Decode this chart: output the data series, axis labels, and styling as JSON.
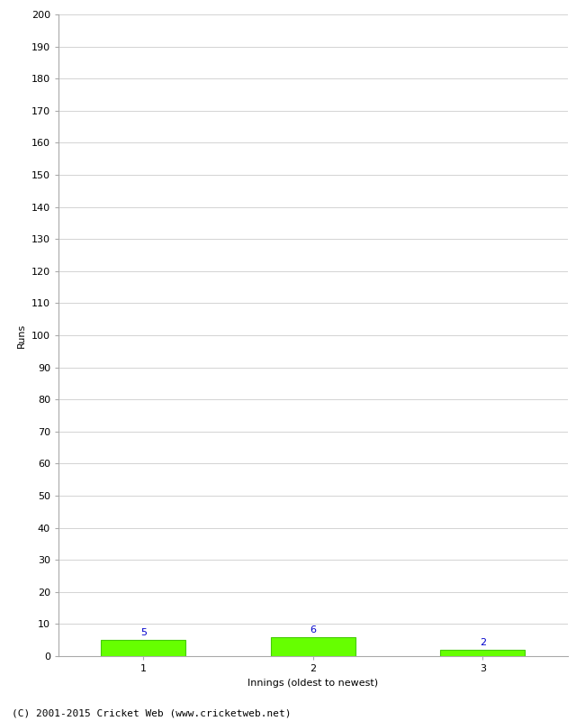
{
  "categories": [
    1,
    2,
    3
  ],
  "values": [
    5,
    6,
    2
  ],
  "bar_color": "#66ff00",
  "bar_edge_color": "#44cc00",
  "label_color": "#0000cc",
  "xlabel": "Innings (oldest to newest)",
  "ylabel": "Runs",
  "ylim": [
    0,
    200
  ],
  "ytick_step": 10,
  "footer": "(C) 2001-2015 Cricket Web (www.cricketweb.net)",
  "label_fontsize": 8,
  "tick_fontsize": 8,
  "axis_label_fontsize": 8,
  "footer_fontsize": 8,
  "bar_width": 0.5,
  "grid_color": "#cccccc",
  "spine_color": "#aaaaaa"
}
